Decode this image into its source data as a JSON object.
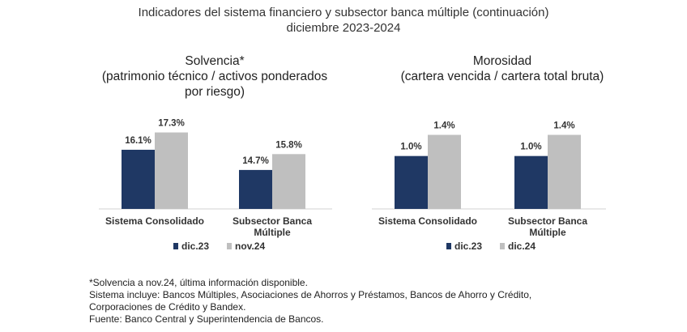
{
  "header": {
    "title_line1": "Indicadores del sistema financiero y subsector banca múltiple (continuación)",
    "title_line2": "diciembre 2023-2024"
  },
  "colors": {
    "series1": "#1f3864",
    "series2": "#bfbfbf",
    "axis": "#d0d0d0",
    "text": "#333333"
  },
  "chart_data": [
    {
      "type": "bar",
      "title": "Solvencia*",
      "subtitle": [
        "(patrimonio técnico / activos ponderados",
        "por riesgo)"
      ],
      "categories": [
        "Sistema Consolidado",
        "Subsector Banca Múltiple"
      ],
      "category_lines": [
        [
          "Sistema Consolidado"
        ],
        [
          "Subsector Banca",
          "Múltiple"
        ]
      ],
      "series": [
        {
          "name": "dic.23",
          "values": [
            16.1,
            14.7
          ],
          "labels": [
            "16.1%",
            "14.7%"
          ]
        },
        {
          "name": "nov.24",
          "values": [
            17.3,
            15.8
          ],
          "labels": [
            "17.3%",
            "15.8%"
          ]
        }
      ],
      "ylim": [
        12.0,
        17.5
      ],
      "unit": "%",
      "legend_position": "bottom-center"
    },
    {
      "type": "bar",
      "title": "Morosidad",
      "subtitle": [
        "(cartera vencida / cartera total bruta)"
      ],
      "categories": [
        "Sistema Consolidado",
        "Subsector Banca Múltiple"
      ],
      "category_lines": [
        [
          "Sistema Consolidado"
        ],
        [
          "Subsector Banca",
          "Múltiple"
        ]
      ],
      "series": [
        {
          "name": "dic.23",
          "values": [
            1.0,
            1.0
          ],
          "labels": [
            "1.0%",
            "1.0%"
          ]
        },
        {
          "name": "dic.24",
          "values": [
            1.4,
            1.4
          ],
          "labels": [
            "1.4%",
            "1.4%"
          ]
        }
      ],
      "ylim": [
        0.0,
        1.5
      ],
      "unit": "%",
      "legend_position": "bottom-center"
    }
  ],
  "footnotes": [
    "*Solvencia a nov.24, última información disponible.",
    "Sistema incluye: Bancos Múltiples, Asociaciones de Ahorros y Préstamos, Bancos de Ahorro y Crédito,",
    "Corporaciones de Crédito y Bandex.",
    "Fuente: Banco Central y Superintendencia de Bancos."
  ]
}
